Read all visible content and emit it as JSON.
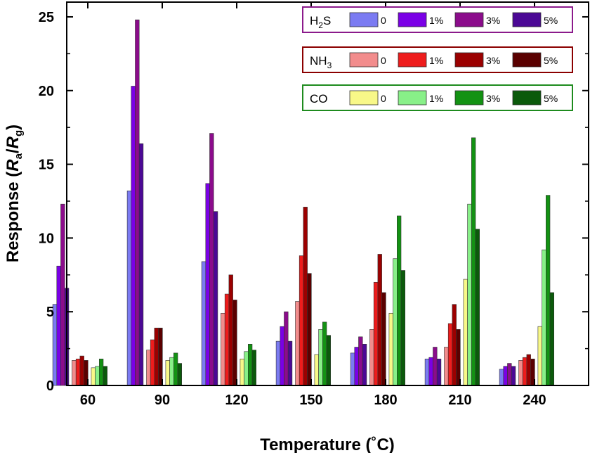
{
  "chart_data": {
    "type": "bar",
    "title": "",
    "xlabel": "Temperature (˚C)",
    "ylabel_parts": {
      "prefix": "Response (",
      "num": "R",
      "num_sub": "a",
      "slash": "/",
      "den": "R",
      "den_sub": "g",
      "suffix": ")"
    },
    "ylim": [
      0,
      26
    ],
    "yticks": [
      0,
      5,
      10,
      15,
      20,
      25
    ],
    "categories": [
      "60",
      "90",
      "120",
      "150",
      "180",
      "210",
      "240"
    ],
    "gases": [
      {
        "name": "H2S",
        "label_main": "H",
        "label_sub": "2",
        "label_tail": "S",
        "frame_color": "#8B1A8B",
        "series": [
          {
            "name": "0",
            "color": "#7B7BF2",
            "values": [
              5.5,
              13.2,
              8.4,
              3.0,
              2.2,
              1.8,
              1.1
            ]
          },
          {
            "name": "1%",
            "color": "#7A00E6",
            "values": [
              8.1,
              20.3,
              13.7,
              4.0,
              2.6,
              1.9,
              1.3
            ]
          },
          {
            "name": "3%",
            "color": "#8B0C8B",
            "values": [
              12.3,
              24.8,
              17.1,
              5.0,
              3.3,
              2.6,
              1.5
            ]
          },
          {
            "name": "5%",
            "color": "#4B0895",
            "values": [
              6.6,
              16.4,
              11.8,
              3.0,
              2.8,
              1.8,
              1.3
            ]
          }
        ]
      },
      {
        "name": "NH3",
        "label_main": "NH",
        "label_sub": "3",
        "label_tail": "",
        "frame_color": "#8B0000",
        "series": [
          {
            "name": "0",
            "color": "#F28C8C",
            "values": [
              1.7,
              2.4,
              4.9,
              5.7,
              3.8,
              2.6,
              1.7
            ]
          },
          {
            "name": "1%",
            "color": "#EE1C1C",
            "values": [
              1.8,
              3.1,
              6.2,
              8.8,
              7.0,
              4.2,
              1.9
            ]
          },
          {
            "name": "3%",
            "color": "#9B0000",
            "values": [
              2.0,
              3.9,
              7.5,
              12.1,
              8.9,
              5.5,
              2.1
            ]
          },
          {
            "name": "5%",
            "color": "#5A0000",
            "values": [
              1.7,
              3.9,
              5.8,
              7.6,
              6.3,
              3.8,
              1.8
            ]
          }
        ]
      },
      {
        "name": "CO",
        "label_main": "CO",
        "label_sub": "",
        "label_tail": "",
        "frame_color": "#1E8B1E",
        "series": [
          {
            "name": "0",
            "color": "#F8F888",
            "values": [
              1.2,
              1.7,
              1.8,
              2.1,
              4.9,
              7.2,
              4.0
            ]
          },
          {
            "name": "1%",
            "color": "#88F088",
            "values": [
              1.3,
              1.9,
              2.3,
              3.8,
              8.6,
              12.3,
              9.2
            ]
          },
          {
            "name": "3%",
            "color": "#139213",
            "values": [
              1.8,
              2.2,
              2.8,
              4.3,
              11.5,
              16.8,
              12.9
            ]
          },
          {
            "name": "5%",
            "color": "#0B5A0B",
            "values": [
              1.3,
              1.5,
              2.4,
              3.4,
              7.8,
              10.6,
              6.3
            ]
          }
        ]
      }
    ],
    "legend_position": "top-right"
  }
}
